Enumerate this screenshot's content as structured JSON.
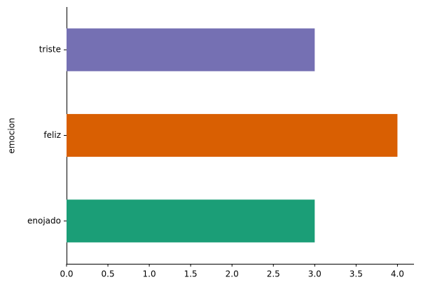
{
  "chart_data": {
    "type": "barh",
    "categories": [
      "enojado",
      "feliz",
      "triste"
    ],
    "values": [
      3,
      4,
      3
    ],
    "colors": [
      "#1b9e77",
      "#d95f02",
      "#7570b3"
    ],
    "ylabel": "emocion",
    "xlim": [
      0,
      4.2
    ],
    "xticks": [
      {
        "value": 0,
        "label": "0.0"
      },
      {
        "value": 0.5,
        "label": "0.5"
      },
      {
        "value": 1,
        "label": "1.0"
      },
      {
        "value": 1.5,
        "label": "1.5"
      },
      {
        "value": 2,
        "label": "2.0"
      },
      {
        "value": 2.5,
        "label": "2.5"
      },
      {
        "value": 3,
        "label": "3.0"
      },
      {
        "value": 3.5,
        "label": "3.5"
      },
      {
        "value": 4,
        "label": "4.0"
      }
    ]
  }
}
